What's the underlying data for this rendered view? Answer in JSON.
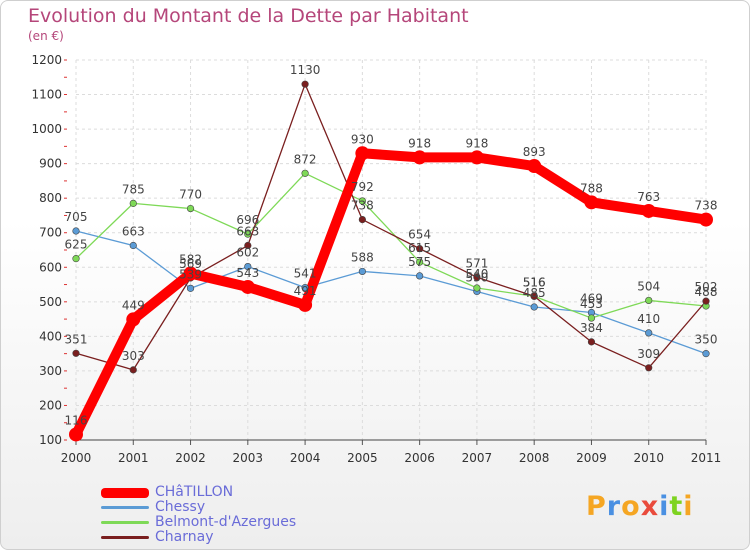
{
  "header": {
    "title": "Evolution du Montant de la Dette par Habitant",
    "subtitle": "(en €)"
  },
  "chart_data": {
    "type": "line",
    "title": "Evolution du Montant de la Dette par Habitant",
    "subtitle": "(en €)",
    "ylim": [
      100,
      1200
    ],
    "yticks": [
      100,
      200,
      300,
      400,
      500,
      600,
      700,
      800,
      900,
      1000,
      1100,
      1200
    ],
    "x": [
      "2000",
      "2001",
      "2002",
      "2003",
      "2004",
      "2005",
      "2006",
      "2007",
      "2008",
      "2009",
      "2010",
      "2011"
    ],
    "grid": true,
    "legend_position": "bottom-left",
    "series": [
      {
        "name": "CHâTILLON",
        "color": "#ff0000",
        "values": [
          116,
          449,
          582,
          543,
          491,
          930,
          918,
          918,
          893,
          788,
          763,
          738
        ]
      },
      {
        "name": "Chessy",
        "color": "#5b9bd5",
        "values": [
          705,
          663,
          539,
          602,
          541,
          588,
          575,
          530,
          485,
          469,
          410,
          350
        ]
      },
      {
        "name": "Belmont-d'Azergues",
        "color": "#7ed957",
        "values": [
          625,
          785,
          770,
          696,
          872,
          792,
          615,
          540,
          516,
          453,
          504,
          488
        ]
      },
      {
        "name": "Charnay",
        "color": "#7a1f1f",
        "values": [
          351,
          303,
          569,
          663,
          1130,
          738,
          654,
          571,
          516,
          384,
          309,
          502
        ]
      }
    ]
  },
  "logo": {
    "letters": [
      "P",
      "r",
      "o",
      "x",
      "i",
      "t",
      "i"
    ],
    "colors": [
      "#f5a623",
      "#4a90e2",
      "#f5a623",
      "#e94b3c",
      "#4a90e2",
      "#7ed321",
      "#f5a623"
    ]
  }
}
